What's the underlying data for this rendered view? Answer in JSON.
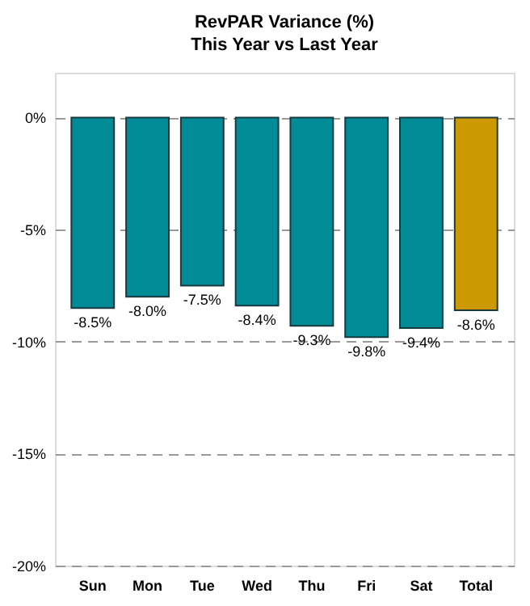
{
  "chart_data": {
    "type": "bar",
    "title": "RevPAR Variance (%)",
    "subtitle": "This Year vs Last Year",
    "categories": [
      "Sun",
      "Mon",
      "Tue",
      "Wed",
      "Thu",
      "Fri",
      "Sat",
      "Total"
    ],
    "values": [
      -8.5,
      -8.0,
      -7.5,
      -8.4,
      -9.3,
      -9.8,
      -9.4,
      -8.6
    ],
    "colors": [
      "#008b96",
      "#008b96",
      "#008b96",
      "#008b96",
      "#008b96",
      "#008b96",
      "#008b96",
      "#cc9900"
    ],
    "value_labels": [
      "-8.5%",
      "-8.0%",
      "-7.5%",
      "-8.4%",
      "-9.3%",
      "-9.8%",
      "-9.4%",
      "-8.6%"
    ],
    "ylim": [
      -20,
      2
    ],
    "yticks": [
      {
        "value": 0,
        "label": "0%"
      },
      {
        "value": -5,
        "label": "-5%"
      },
      {
        "value": -10,
        "label": "-10%"
      },
      {
        "value": -15,
        "label": "-15%"
      },
      {
        "value": -20,
        "label": "-20%"
      }
    ],
    "grid": "y"
  }
}
